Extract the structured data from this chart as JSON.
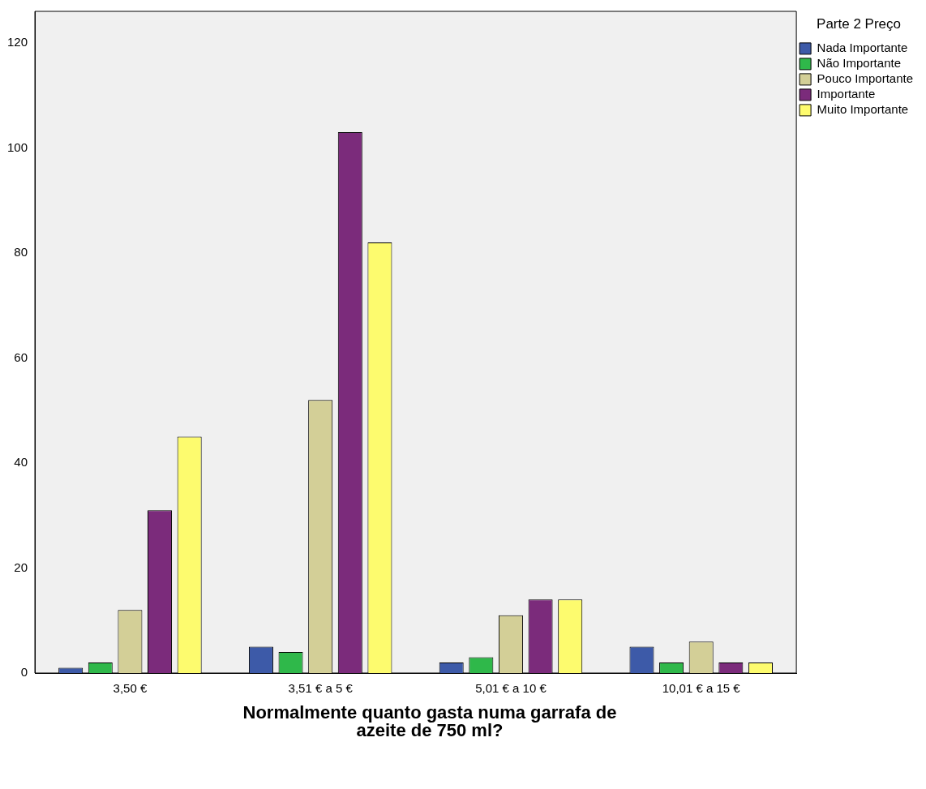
{
  "chart_data": {
    "type": "bar",
    "xlabel": "Normalmente quanto gasta numa garrafa de azeite de 750 ml?",
    "legend_title": "Parte 2 Preço",
    "legend": "right",
    "categories": [
      "3,50 €",
      "3,51 € a 5 €",
      "5,01 € a 10 €",
      "10,01 € a 15 €"
    ],
    "ylim": [
      0,
      126
    ],
    "yticks": [
      0,
      20,
      40,
      60,
      80,
      100,
      120
    ],
    "grid": false,
    "series": [
      {
        "name": "Nada Importante",
        "color": "#3d5aa8",
        "values": [
          1,
          5,
          2,
          5
        ]
      },
      {
        "name": "Não Importante",
        "color": "#2fb84a",
        "values": [
          2,
          4,
          3,
          2
        ]
      },
      {
        "name": "Pouco Importante",
        "color": "#d3cf97",
        "values": [
          12,
          52,
          11,
          6
        ]
      },
      {
        "name": "Importante",
        "color": "#7b2b7b",
        "values": [
          31,
          103,
          14,
          2
        ]
      },
      {
        "name": "Muito Importante",
        "color": "#fdfb6e",
        "values": [
          45,
          82,
          14,
          2
        ]
      }
    ]
  }
}
